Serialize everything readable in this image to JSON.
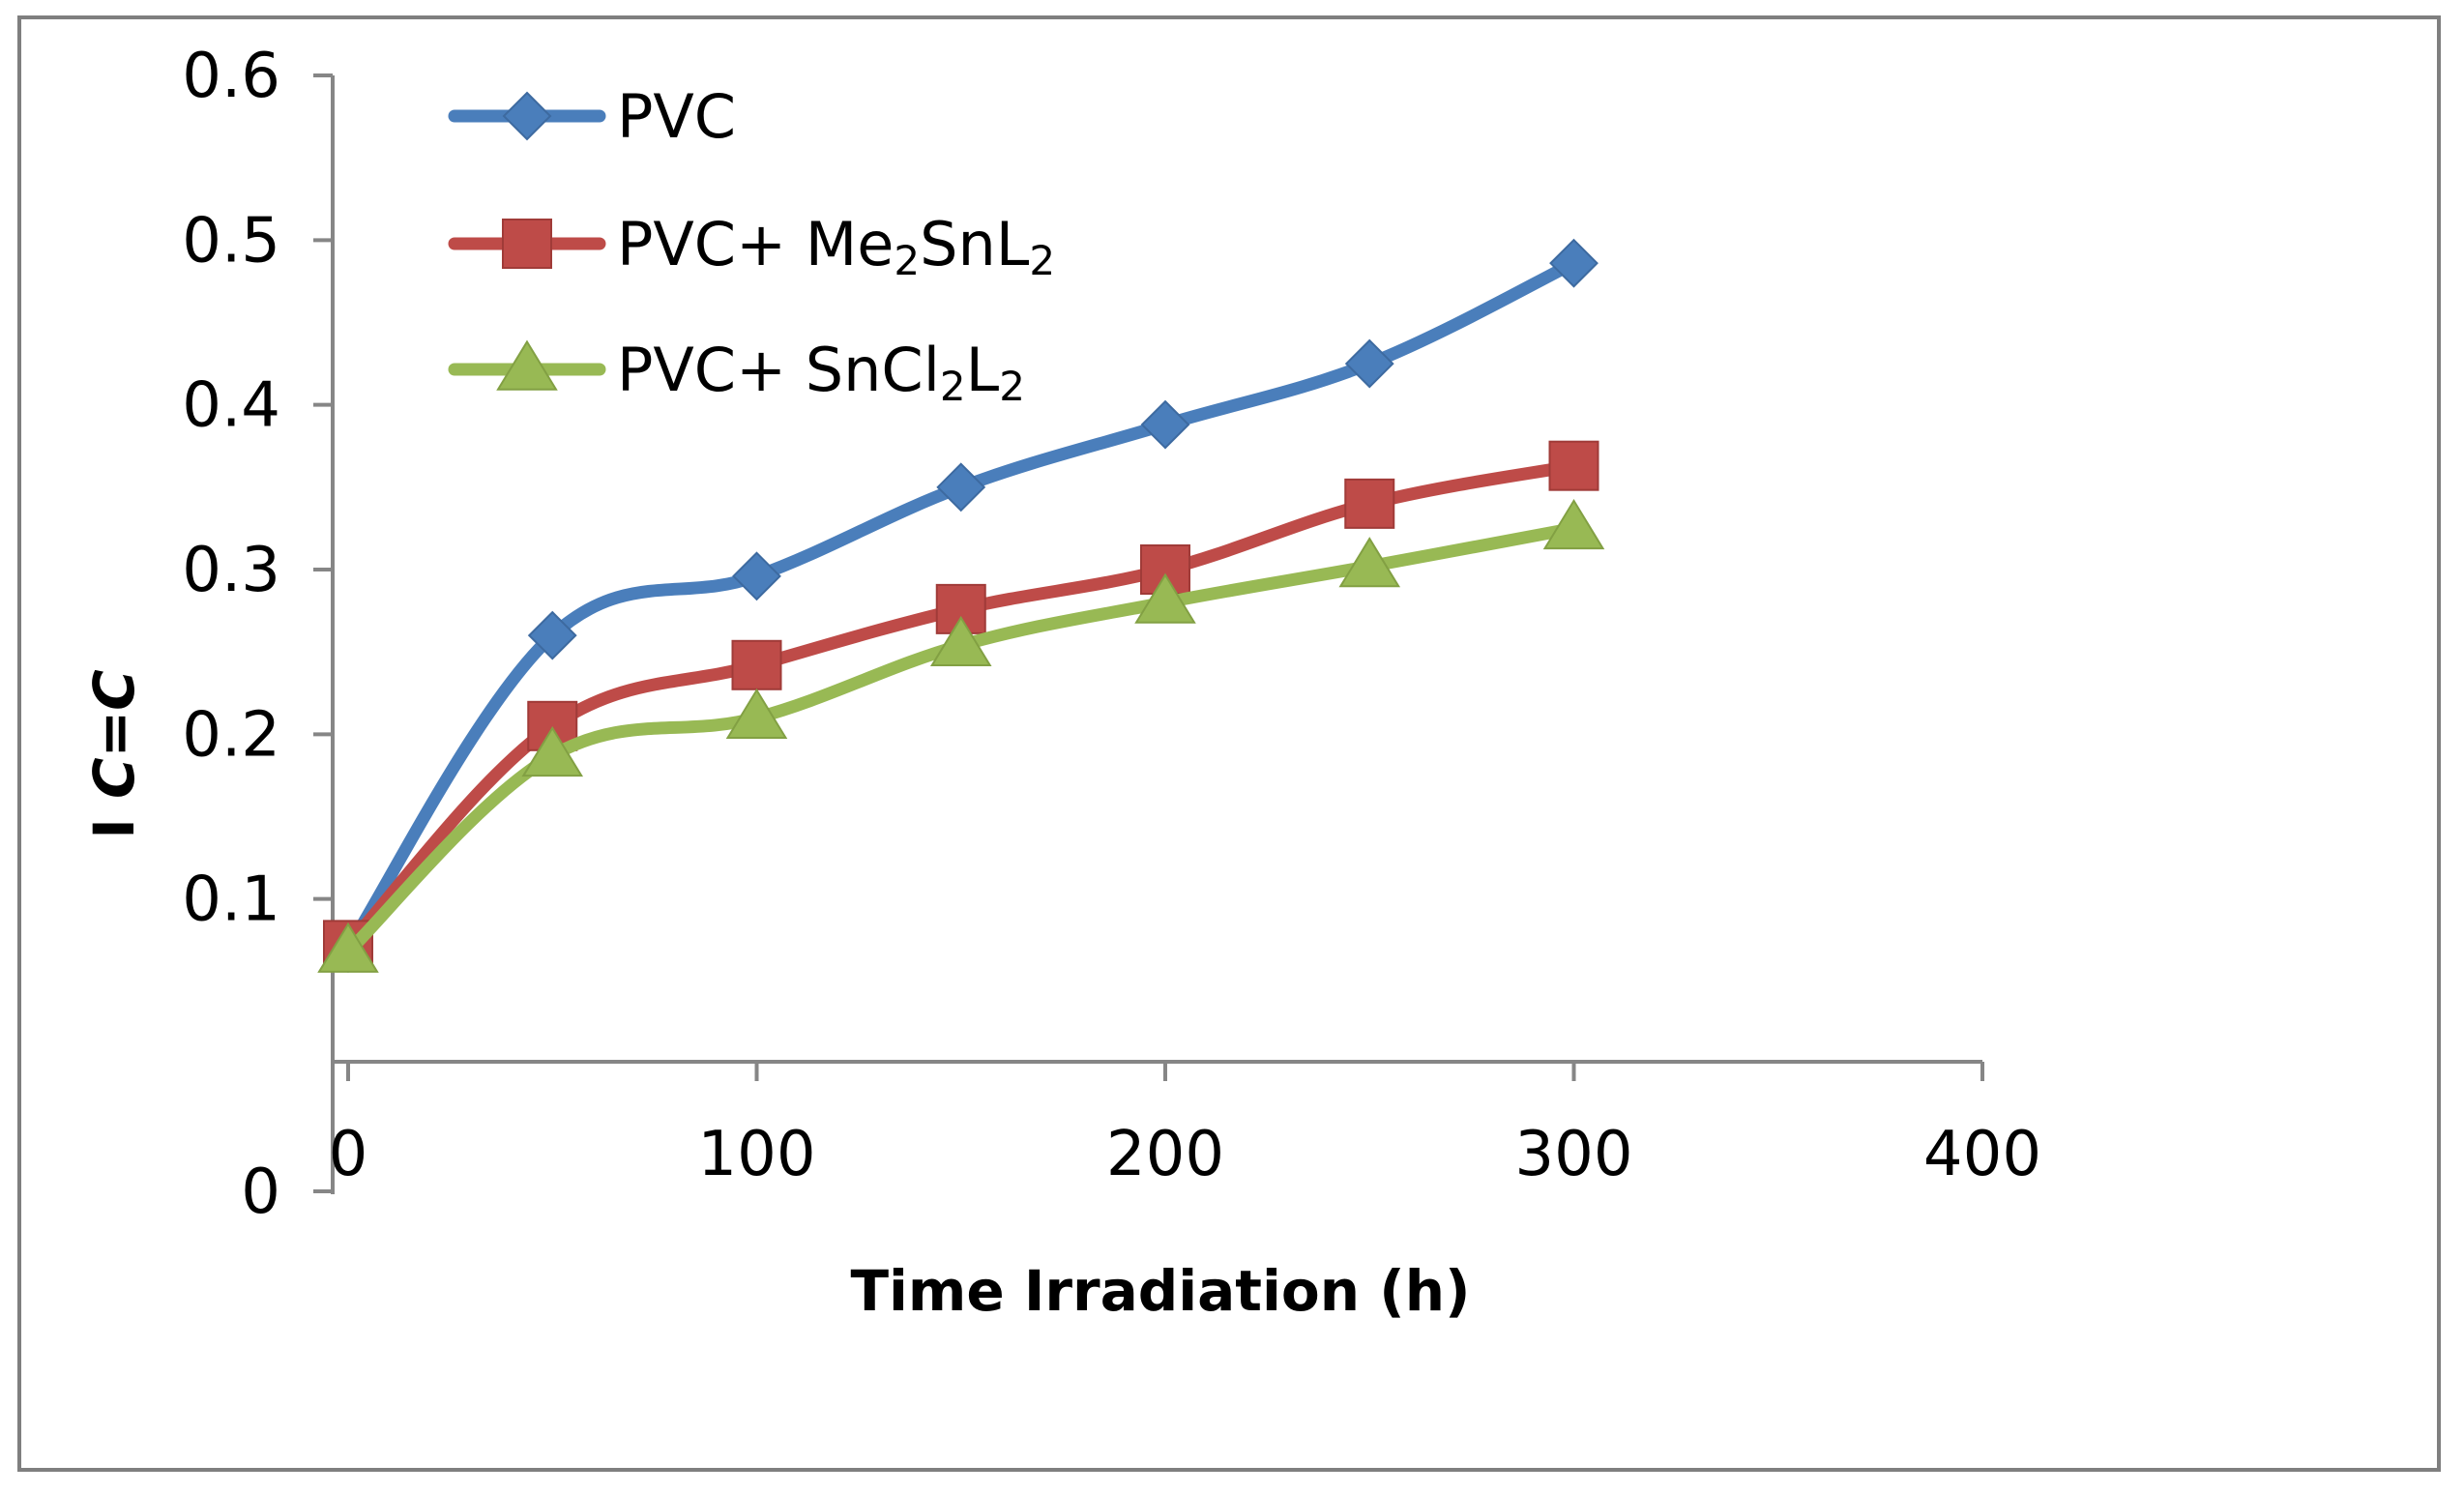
{
  "chart_data": {
    "type": "line",
    "title": "",
    "xlabel": "Time Irradiation (h)",
    "ylabel_prefix": "I ",
    "ylabel_italic": "C=C",
    "xlim": [
      0,
      400
    ],
    "ylim": [
      0,
      0.6
    ],
    "x_ticks": [
      0,
      100,
      200,
      300,
      400
    ],
    "x_tick_labels": [
      "0",
      "100",
      "200",
      "300",
      "400"
    ],
    "y_ticks": [
      0,
      0.1,
      0.2,
      0.3,
      0.4,
      0.5,
      0.6
    ],
    "y_tick_labels": [
      "0",
      "0.1",
      "0.2",
      "0.3",
      "0.4",
      "0.5",
      "0.6"
    ],
    "grid": false,
    "legend_position": "top-left",
    "x": [
      0,
      50,
      100,
      150,
      200,
      250,
      300
    ],
    "series": [
      {
        "name": "PVC",
        "name_parts": [
          {
            "text": "PVC"
          }
        ],
        "color": "#4a7ebb",
        "marker": "diamond",
        "values": [
          0.07,
          0.26,
          0.296,
          0.35,
          0.388,
          0.425,
          0.486
        ]
      },
      {
        "name": "PVC+ Me2SnL2",
        "name_parts": [
          {
            "text": "PVC+ Me"
          },
          {
            "text": "2",
            "sub": true
          },
          {
            "text": "SnL"
          },
          {
            "text": "2",
            "sub": true
          }
        ],
        "color": "#be4b48",
        "marker": "square",
        "values": [
          0.072,
          0.205,
          0.242,
          0.276,
          0.3,
          0.34,
          0.363
        ]
      },
      {
        "name": "PVC+ SnCl2L2",
        "name_parts": [
          {
            "text": "PVC+  SnCl"
          },
          {
            "text": "2",
            "sub": true
          },
          {
            "text": "L"
          },
          {
            "text": "2",
            "sub": true
          }
        ],
        "color": "#98b954",
        "marker": "triangle",
        "values": [
          0.068,
          0.187,
          0.21,
          0.254,
          0.28,
          0.302,
          0.325
        ]
      }
    ]
  }
}
